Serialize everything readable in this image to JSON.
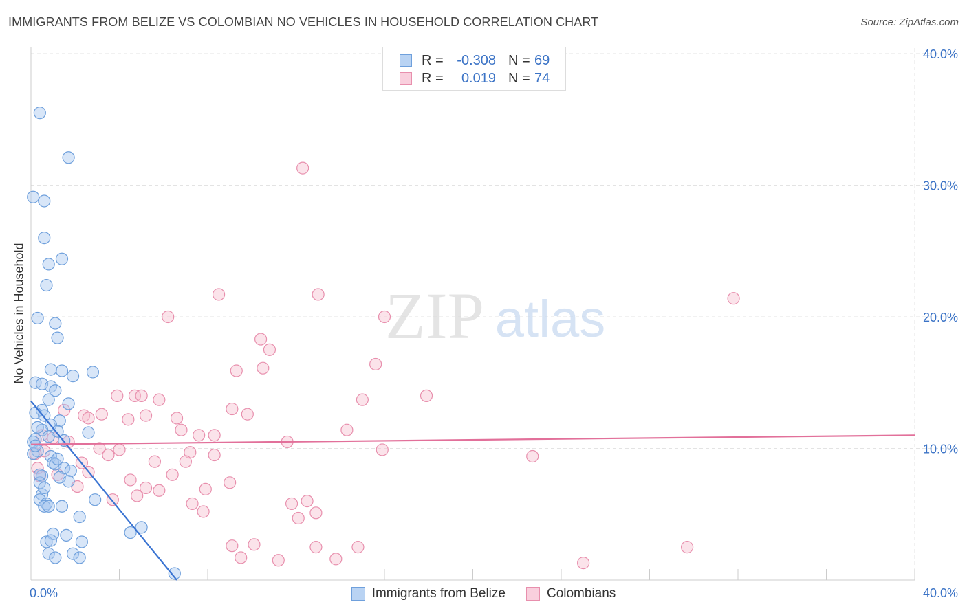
{
  "title": "IMMIGRANTS FROM BELIZE VS COLOMBIAN NO VEHICLES IN HOUSEHOLD CORRELATION CHART",
  "source": "Source: ZipAtlas.com",
  "watermark": {
    "zip": "ZIP",
    "atlas": "atlas"
  },
  "legend": {
    "r_label": "R =",
    "n_label": "N =",
    "blue": {
      "r": "-0.308",
      "n": "69"
    },
    "pink": {
      "r": "0.019",
      "n": "74"
    }
  },
  "colors": {
    "blue_fill": "#a8c8ef",
    "blue_stroke": "#6fa0dc",
    "blue_line": "#3a74d2",
    "pink_fill": "#f6c0d1",
    "pink_stroke": "#e88fad",
    "pink_line": "#e2709a",
    "tick_label": "#3b73c6",
    "grid": "#e3e3e3"
  },
  "chart_data": {
    "type": "scatter",
    "ylabel": "No Vehicles in Household",
    "xlim": [
      0,
      40
    ],
    "ylim": [
      0,
      40
    ],
    "x_tick_labels": [
      "0.0%",
      "40.0%"
    ],
    "y_ticks": [
      10,
      20,
      30,
      40
    ],
    "y_tick_labels": [
      "10.0%",
      "20.0%",
      "30.0%",
      "40.0%"
    ],
    "grid": true,
    "series": [
      {
        "name": "Immigrants from Belize",
        "color": "blue",
        "points": [
          [
            0.4,
            35.5
          ],
          [
            1.7,
            32.1
          ],
          [
            0.1,
            29.1
          ],
          [
            0.6,
            28.8
          ],
          [
            0.6,
            26.0
          ],
          [
            1.4,
            24.4
          ],
          [
            0.8,
            24.0
          ],
          [
            0.7,
            22.4
          ],
          [
            0.3,
            19.9
          ],
          [
            1.1,
            19.5
          ],
          [
            1.2,
            18.4
          ],
          [
            0.9,
            16.0
          ],
          [
            1.4,
            15.9
          ],
          [
            2.8,
            15.8
          ],
          [
            1.9,
            15.5
          ],
          [
            0.2,
            15.0
          ],
          [
            0.5,
            14.9
          ],
          [
            0.9,
            14.7
          ],
          [
            1.1,
            14.4
          ],
          [
            0.8,
            13.7
          ],
          [
            1.7,
            13.4
          ],
          [
            0.5,
            12.9
          ],
          [
            0.2,
            12.7
          ],
          [
            0.6,
            12.5
          ],
          [
            1.3,
            12.1
          ],
          [
            0.9,
            11.8
          ],
          [
            0.5,
            11.4
          ],
          [
            1.2,
            11.3
          ],
          [
            2.6,
            11.2
          ],
          [
            0.2,
            10.7
          ],
          [
            0.1,
            10.5
          ],
          [
            0.8,
            10.9
          ],
          [
            0.3,
            9.8
          ],
          [
            0.1,
            9.6
          ],
          [
            0.9,
            9.4
          ],
          [
            1.0,
            8.9
          ],
          [
            1.1,
            8.8
          ],
          [
            1.5,
            8.5
          ],
          [
            1.8,
            8.3
          ],
          [
            0.5,
            7.9
          ],
          [
            1.3,
            7.8
          ],
          [
            0.4,
            7.4
          ],
          [
            1.7,
            7.5
          ],
          [
            2.9,
            6.1
          ],
          [
            0.5,
            6.5
          ],
          [
            0.4,
            6.1
          ],
          [
            0.7,
            5.8
          ],
          [
            0.6,
            5.6
          ],
          [
            0.8,
            5.6
          ],
          [
            1.4,
            5.6
          ],
          [
            2.2,
            4.8
          ],
          [
            5.0,
            4.0
          ],
          [
            4.5,
            3.6
          ],
          [
            1.6,
            3.4
          ],
          [
            1.0,
            3.5
          ],
          [
            0.7,
            2.9
          ],
          [
            2.3,
            2.9
          ],
          [
            0.8,
            2.0
          ],
          [
            1.9,
            2.0
          ],
          [
            1.1,
            1.7
          ],
          [
            2.2,
            1.7
          ],
          [
            6.5,
            0.5
          ],
          [
            0.9,
            3.0
          ],
          [
            0.2,
            10.2
          ],
          [
            0.4,
            8.0
          ],
          [
            1.2,
            9.2
          ],
          [
            0.6,
            7.0
          ],
          [
            0.3,
            11.6
          ],
          [
            1.5,
            10.6
          ]
        ]
      },
      {
        "name": "Colombians",
        "color": "pink",
        "points": [
          [
            12.3,
            31.3
          ],
          [
            8.5,
            21.7
          ],
          [
            13.0,
            21.7
          ],
          [
            31.8,
            21.4
          ],
          [
            6.2,
            20.0
          ],
          [
            16.0,
            20.0
          ],
          [
            10.4,
            18.3
          ],
          [
            10.8,
            17.5
          ],
          [
            15.6,
            16.4
          ],
          [
            10.5,
            16.1
          ],
          [
            9.3,
            15.9
          ],
          [
            3.9,
            14.0
          ],
          [
            4.7,
            14.0
          ],
          [
            5.0,
            14.0
          ],
          [
            5.8,
            13.7
          ],
          [
            15.0,
            13.7
          ],
          [
            17.9,
            14.0
          ],
          [
            9.1,
            13.0
          ],
          [
            1.5,
            12.9
          ],
          [
            2.4,
            12.5
          ],
          [
            3.2,
            12.6
          ],
          [
            2.6,
            12.3
          ],
          [
            4.4,
            12.2
          ],
          [
            5.2,
            12.5
          ],
          [
            6.6,
            12.3
          ],
          [
            9.8,
            12.6
          ],
          [
            6.8,
            11.4
          ],
          [
            14.3,
            11.4
          ],
          [
            0.5,
            11.0
          ],
          [
            1.0,
            10.8
          ],
          [
            7.6,
            11.0
          ],
          [
            8.3,
            11.0
          ],
          [
            1.7,
            10.5
          ],
          [
            3.1,
            10.0
          ],
          [
            4.0,
            9.9
          ],
          [
            11.6,
            10.5
          ],
          [
            15.9,
            9.9
          ],
          [
            0.6,
            9.8
          ],
          [
            3.5,
            9.5
          ],
          [
            7.2,
            9.7
          ],
          [
            8.3,
            9.5
          ],
          [
            2.3,
            8.9
          ],
          [
            5.6,
            9.0
          ],
          [
            7.0,
            9.0
          ],
          [
            22.7,
            9.4
          ],
          [
            0.2,
            9.6
          ],
          [
            2.6,
            8.2
          ],
          [
            6.4,
            8.0
          ],
          [
            0.4,
            7.9
          ],
          [
            4.5,
            7.6
          ],
          [
            7.9,
            6.9
          ],
          [
            9.0,
            7.4
          ],
          [
            2.1,
            7.1
          ],
          [
            5.2,
            7.0
          ],
          [
            5.8,
            6.8
          ],
          [
            3.7,
            6.1
          ],
          [
            4.8,
            6.4
          ],
          [
            7.3,
            5.8
          ],
          [
            11.8,
            5.8
          ],
          [
            12.5,
            6.0
          ],
          [
            12.9,
            5.1
          ],
          [
            7.8,
            5.2
          ],
          [
            12.1,
            4.7
          ],
          [
            9.1,
            2.6
          ],
          [
            10.1,
            2.7
          ],
          [
            12.9,
            2.5
          ],
          [
            14.8,
            2.5
          ],
          [
            9.5,
            1.7
          ],
          [
            11.2,
            1.5
          ],
          [
            13.8,
            1.6
          ],
          [
            29.7,
            2.5
          ],
          [
            25.0,
            1.3
          ],
          [
            0.3,
            8.5
          ],
          [
            1.2,
            8.0
          ]
        ]
      }
    ],
    "trendlines": [
      {
        "series": "Immigrants from Belize",
        "x": [
          0,
          6.6
        ],
        "y": [
          13.6,
          0.0
        ]
      },
      {
        "series": "Colombians",
        "x": [
          0,
          40
        ],
        "y": [
          10.3,
          11.0
        ]
      }
    ]
  }
}
